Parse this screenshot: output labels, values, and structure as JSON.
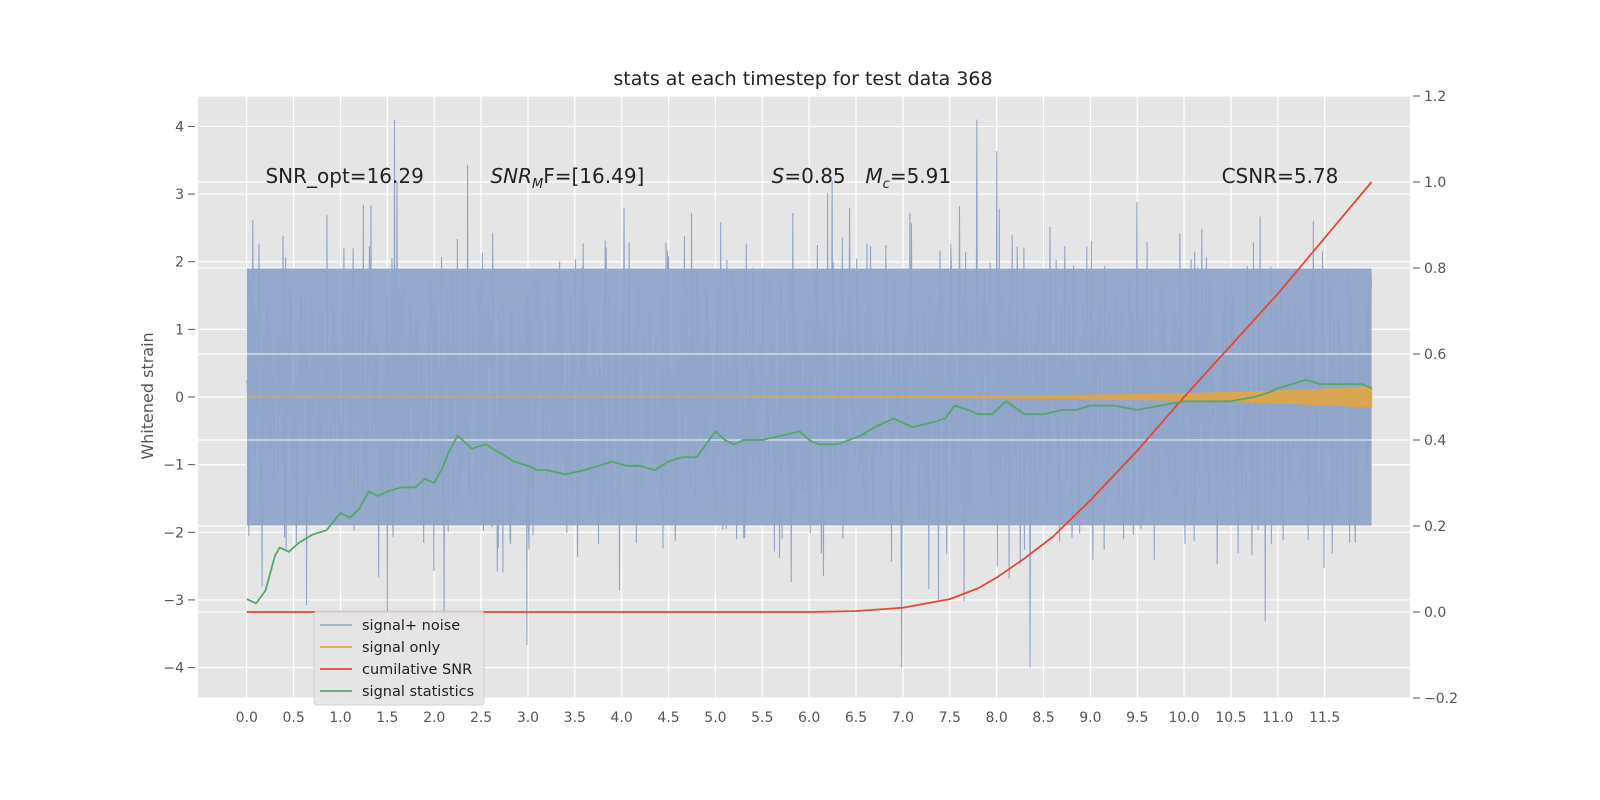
{
  "chart_data": {
    "type": "line",
    "title": "stats at each timestep for test data 368",
    "xlabel": "",
    "ylabel": "Whitened strain",
    "y2label": "",
    "xlim": [
      -0.52,
      12.41
    ],
    "ylim": [
      -4.45,
      4.45
    ],
    "y2lim": [
      -0.2,
      1.2
    ],
    "xticks": [
      "0.0",
      "0.5",
      "1.0",
      "1.5",
      "2.0",
      "2.5",
      "3.0",
      "3.5",
      "4.0",
      "4.5",
      "5.0",
      "5.5",
      "6.0",
      "6.5",
      "7.0",
      "7.5",
      "8.0",
      "8.5",
      "9.0",
      "9.5",
      "10.0",
      "10.5",
      "11.0",
      "11.5"
    ],
    "yticks": [
      "4",
      "3",
      "2",
      "1",
      "0",
      "−1",
      "−2",
      "−3",
      "−4"
    ],
    "y2ticks": [
      "1.2",
      "1.0",
      "0.8",
      "0.6",
      "0.4",
      "0.2",
      "0.0",
      "−0.2"
    ],
    "grid": true,
    "legend_position": "lower-left",
    "annotations": [
      {
        "text": "SNR_opt=16.29",
        "x": 0.2,
        "y": 3.27,
        "italic_prefix": ""
      },
      {
        "text": "F=[16.49]",
        "x": 2.6,
        "y": 3.27,
        "italic_prefix": "SNR",
        "sub": "M"
      },
      {
        "text": "=0.85",
        "x": 5.6,
        "y": 3.27,
        "italic_prefix": "S"
      },
      {
        "text": "=5.91",
        "x": 6.6,
        "y": 3.27,
        "italic_prefix": "M",
        "sub": "c"
      },
      {
        "text": "CSNR=5.78",
        "x": 10.4,
        "y": 3.27,
        "italic_prefix": ""
      }
    ],
    "series": [
      {
        "name": "signal+ noise",
        "axis": "left",
        "color": "#8fa5c9",
        "style": "noise",
        "x_start": 0.0,
        "x_end": 12.0,
        "band": [
          -1.9,
          1.9
        ],
        "range": [
          -4.0,
          4.1
        ]
      },
      {
        "name": "signal only",
        "axis": "left",
        "color": "#e8a53c",
        "style": "chirp",
        "x_start": 0.0,
        "x_end": 12.0,
        "amplitude_start": 0.0,
        "amplitude_end": 0.15
      },
      {
        "name": "cumilative SNR",
        "axis": "right",
        "color": "#e24a33",
        "x": [
          0.0,
          1.0,
          2.0,
          3.0,
          4.0,
          5.0,
          6.0,
          6.5,
          7.0,
          7.5,
          7.8,
          8.0,
          8.3,
          8.6,
          9.0,
          9.5,
          10.0,
          10.5,
          11.0,
          11.5,
          12.0
        ],
        "y": [
          0.0,
          0.0,
          0.0,
          0.0,
          0.0,
          0.0,
          0.0,
          0.002,
          0.01,
          0.03,
          0.055,
          0.08,
          0.125,
          0.175,
          0.26,
          0.375,
          0.5,
          0.62,
          0.74,
          0.87,
          1.0
        ]
      },
      {
        "name": "signal statistics",
        "axis": "right",
        "color": "#55a868",
        "x": [
          0.0,
          0.1,
          0.2,
          0.3,
          0.35,
          0.45,
          0.55,
          0.7,
          0.85,
          1.0,
          1.1,
          1.2,
          1.3,
          1.4,
          1.5,
          1.65,
          1.8,
          1.9,
          2.0,
          2.1,
          2.15,
          2.25,
          2.4,
          2.55,
          2.7,
          2.85,
          3.0,
          3.1,
          3.2,
          3.4,
          3.6,
          3.75,
          3.9,
          4.05,
          4.2,
          4.35,
          4.5,
          4.65,
          4.8,
          5.0,
          5.1,
          5.2,
          5.3,
          5.5,
          5.7,
          5.9,
          6.0,
          6.1,
          6.3,
          6.55,
          6.7,
          6.8,
          6.9,
          7.1,
          7.3,
          7.45,
          7.55,
          7.7,
          7.8,
          7.95,
          8.1,
          8.3,
          8.5,
          8.7,
          8.85,
          9.0,
          9.25,
          9.5,
          9.75,
          10.0,
          10.25,
          10.5,
          10.75,
          10.9,
          11.0,
          11.15,
          11.3,
          11.45,
          11.6,
          11.8,
          11.9,
          12.0
        ],
        "y": [
          0.03,
          0.02,
          0.05,
          0.13,
          0.15,
          0.14,
          0.16,
          0.18,
          0.19,
          0.23,
          0.22,
          0.24,
          0.28,
          0.27,
          0.28,
          0.29,
          0.29,
          0.31,
          0.3,
          0.34,
          0.37,
          0.41,
          0.38,
          0.39,
          0.37,
          0.35,
          0.34,
          0.33,
          0.33,
          0.32,
          0.33,
          0.34,
          0.35,
          0.34,
          0.34,
          0.33,
          0.35,
          0.36,
          0.36,
          0.42,
          0.4,
          0.39,
          0.4,
          0.4,
          0.41,
          0.42,
          0.4,
          0.39,
          0.39,
          0.41,
          0.43,
          0.44,
          0.45,
          0.43,
          0.44,
          0.45,
          0.48,
          0.47,
          0.46,
          0.46,
          0.49,
          0.46,
          0.46,
          0.47,
          0.47,
          0.48,
          0.48,
          0.47,
          0.48,
          0.49,
          0.49,
          0.49,
          0.5,
          0.51,
          0.52,
          0.53,
          0.54,
          0.53,
          0.53,
          0.53,
          0.53,
          0.52
        ]
      }
    ]
  }
}
